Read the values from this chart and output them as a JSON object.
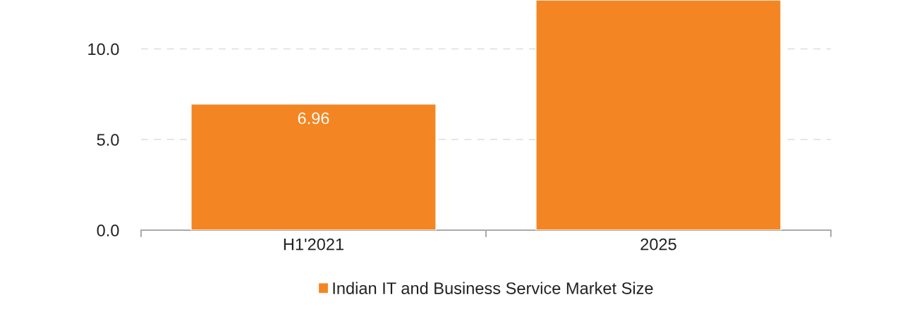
{
  "chart_data": {
    "type": "bar",
    "categories": [
      "H1'2021",
      "2025"
    ],
    "series": [
      {
        "name": "Indian IT and Business Service Market Size",
        "color": "#f38622",
        "values": [
          6.96,
          12.7
        ],
        "value_labels": [
          "6.96",
          null
        ]
      }
    ],
    "ylim": [
      0,
      12.7
    ],
    "yticks": [
      {
        "value": 0,
        "label": "0.0"
      },
      {
        "value": 5,
        "label": "5.0"
      },
      {
        "value": 10,
        "label": "10.0"
      }
    ],
    "grid": "y",
    "legend": "bottom"
  }
}
